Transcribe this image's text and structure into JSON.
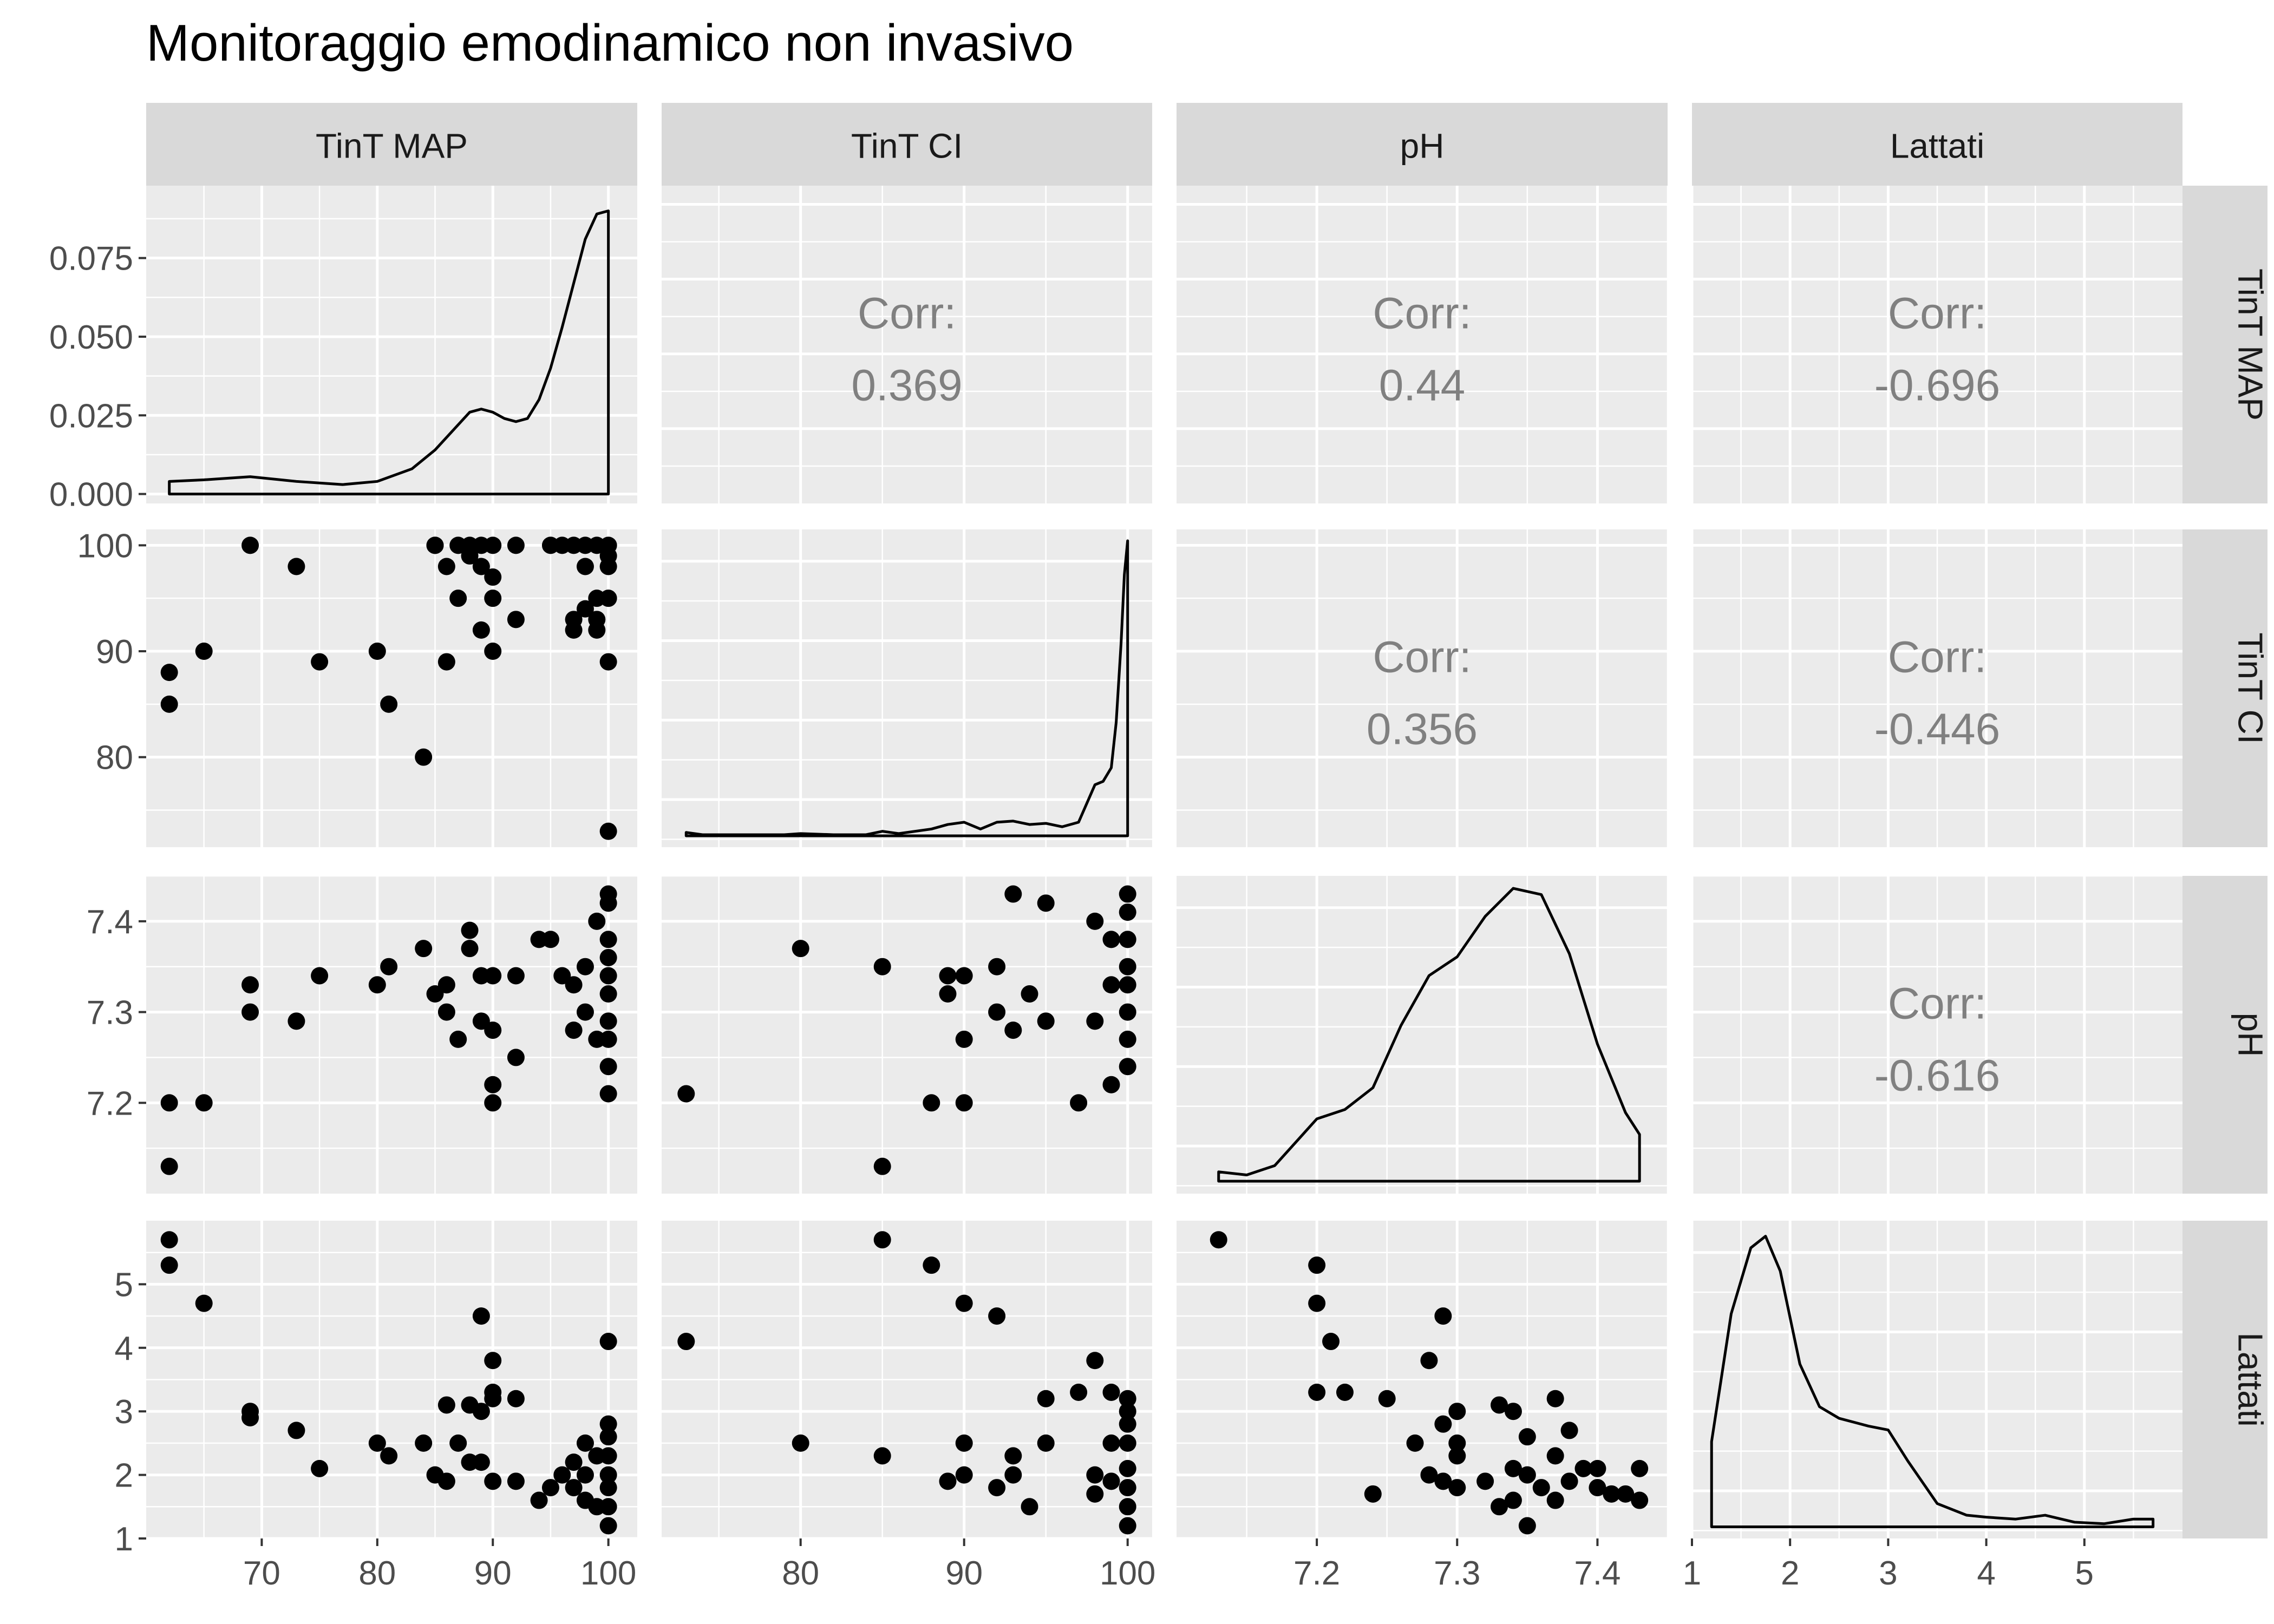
{
  "title": "Monitoraggio emodinamico non invasivo",
  "variables": [
    "TinT MAP",
    "TinT CI",
    "pH",
    "Lattati"
  ],
  "corr_label": "Corr:",
  "colors": {
    "panel_background": "#EBEBEB",
    "grid": "#FFFFFF",
    "strip_background": "#D9D9D9",
    "strip_text": "#1A1A1A",
    "corr_text": "#808080",
    "points": "#000000",
    "axis_text": "#4D4D4D",
    "title": "#000000"
  },
  "axes": {
    "TinT MAP": {
      "range": [
        60.0,
        102.5
      ],
      "ticks": [
        70,
        80,
        90,
        100
      ]
    },
    "TinT CI": {
      "range": [
        71.5,
        101.5
      ],
      "ticks": [
        80,
        90,
        100
      ]
    },
    "pH": {
      "range": [
        7.1,
        7.45
      ],
      "ticks": [
        7.2,
        7.3,
        7.4
      ]
    },
    "Lattati": {
      "range": [
        1.0,
        6.0
      ],
      "ticks": [
        1,
        2,
        3,
        4,
        5
      ]
    }
  },
  "chart_data": [
    {
      "type": "area",
      "row": "TinT MAP",
      "col": "TinT MAP",
      "ylim": [
        -0.003,
        0.098
      ],
      "y_ticks": [
        0.0,
        0.025,
        0.05,
        0.075
      ],
      "y_tick_labels": [
        "0.000",
        "0.025",
        "0.050",
        "0.075"
      ],
      "x": [
        62.0,
        65.0,
        69.0,
        73.0,
        77.0,
        80.0,
        83.0,
        85.0,
        87.0,
        88.0,
        89.0,
        90.0,
        91.0,
        92.0,
        93.0,
        94.0,
        95.0,
        96.0,
        97.0,
        98.0,
        99.0,
        100.0
      ],
      "y": [
        0.004,
        0.0045,
        0.0055,
        0.004,
        0.003,
        0.004,
        0.008,
        0.014,
        0.022,
        0.026,
        0.027,
        0.026,
        0.024,
        0.023,
        0.024,
        0.03,
        0.04,
        0.053,
        0.067,
        0.081,
        0.089,
        0.09
      ]
    },
    {
      "type": "table",
      "row": "TinT MAP",
      "col": "TinT CI",
      "corr": "0.369"
    },
    {
      "type": "table",
      "row": "TinT MAP",
      "col": "pH",
      "corr": "0.44"
    },
    {
      "type": "table",
      "row": "TinT MAP",
      "col": "Lattati",
      "corr": "-0.696"
    },
    {
      "type": "scatter",
      "row": "TinT CI",
      "col": "TinT MAP",
      "x": [
        62,
        62,
        65,
        69,
        73,
        75,
        80,
        81,
        84,
        85,
        85,
        86,
        86,
        87,
        87,
        88,
        88,
        89,
        89,
        89,
        90,
        90,
        90,
        90,
        92,
        92,
        95,
        96,
        97,
        97,
        97,
        98,
        98,
        98,
        99,
        99,
        99,
        99,
        100,
        100,
        100,
        100,
        100,
        100
      ],
      "y": [
        88,
        85,
        90,
        100,
        98,
        89,
        90,
        85,
        80,
        100,
        100,
        98,
        89,
        100,
        95,
        99,
        100,
        100,
        98,
        92,
        100,
        97,
        95,
        90,
        100,
        93,
        100,
        100,
        100,
        93,
        92,
        98,
        100,
        94,
        100,
        95,
        93,
        92,
        100,
        99,
        98,
        95,
        89,
        73
      ]
    },
    {
      "type": "area",
      "row": "TinT CI",
      "col": "TinT CI",
      "ylim": [
        -0.01,
        0.27
      ],
      "x": [
        73.0,
        74.0,
        76.0,
        79.0,
        80.0,
        82.0,
        84.0,
        85.0,
        86.0,
        88.0,
        89.0,
        90.0,
        91.0,
        92.0,
        93.0,
        94.0,
        95.0,
        96.0,
        97.0,
        98.0,
        98.5,
        99.0,
        99.3,
        99.6,
        99.8,
        100.0
      ],
      "y": [
        0.003,
        0.001,
        0.001,
        0.001,
        0.002,
        0.001,
        0.001,
        0.004,
        0.002,
        0.006,
        0.01,
        0.012,
        0.006,
        0.012,
        0.013,
        0.01,
        0.011,
        0.008,
        0.012,
        0.045,
        0.048,
        0.06,
        0.1,
        0.17,
        0.23,
        0.26
      ]
    },
    {
      "type": "table",
      "row": "TinT CI",
      "col": "pH",
      "corr": "0.356"
    },
    {
      "type": "table",
      "row": "TinT CI",
      "col": "Lattati",
      "corr": "-0.446"
    },
    {
      "type": "scatter",
      "row": "pH",
      "col": "TinT MAP",
      "x": [
        62,
        62,
        65,
        69,
        69,
        73,
        75,
        80,
        81,
        84,
        85,
        86,
        86,
        87,
        88,
        88,
        89,
        89,
        90,
        90,
        90,
        90,
        92,
        92,
        94,
        95,
        96,
        97,
        97,
        98,
        98,
        99,
        99,
        100,
        100,
        100,
        100,
        100,
        100,
        100,
        100,
        100,
        100
      ],
      "y": [
        7.2,
        7.13,
        7.2,
        7.33,
        7.3,
        7.29,
        7.34,
        7.33,
        7.35,
        7.37,
        7.32,
        7.33,
        7.3,
        7.27,
        7.39,
        7.37,
        7.34,
        7.29,
        7.34,
        7.28,
        7.22,
        7.2,
        7.34,
        7.25,
        7.38,
        7.38,
        7.34,
        7.33,
        7.28,
        7.35,
        7.3,
        7.4,
        7.27,
        7.43,
        7.42,
        7.38,
        7.36,
        7.34,
        7.32,
        7.29,
        7.27,
        7.24,
        7.21
      ]
    },
    {
      "type": "scatter",
      "row": "pH",
      "col": "TinT CI",
      "x": [
        73,
        80,
        85,
        85,
        88,
        89,
        89,
        90,
        90,
        90,
        92,
        92,
        93,
        93,
        94,
        95,
        95,
        97,
        98,
        98,
        99,
        99,
        99,
        100,
        100,
        100,
        100,
        100,
        100,
        100,
        100
      ],
      "y": [
        7.21,
        7.37,
        7.35,
        7.13,
        7.2,
        7.34,
        7.32,
        7.34,
        7.27,
        7.2,
        7.35,
        7.3,
        7.43,
        7.28,
        7.32,
        7.42,
        7.29,
        7.2,
        7.4,
        7.29,
        7.38,
        7.33,
        7.22,
        7.43,
        7.41,
        7.38,
        7.35,
        7.33,
        7.3,
        7.27,
        7.24
      ]
    },
    {
      "type": "area",
      "row": "pH",
      "col": "pH",
      "ylim": [
        -0.4,
        9.8
      ],
      "x": [
        7.13,
        7.15,
        7.17,
        7.19,
        7.2,
        7.22,
        7.24,
        7.26,
        7.28,
        7.3,
        7.32,
        7.34,
        7.36,
        7.38,
        7.4,
        7.42,
        7.43
      ],
      "y": [
        0.3,
        0.2,
        0.5,
        1.5,
        2.0,
        2.3,
        3.0,
        5.0,
        6.6,
        7.2,
        8.5,
        9.4,
        9.2,
        7.3,
        4.4,
        2.2,
        1.5
      ]
    },
    {
      "type": "table",
      "row": "pH",
      "col": "Lattati",
      "corr": "-0.616"
    },
    {
      "type": "scatter",
      "row": "Lattati",
      "col": "TinT MAP",
      "x": [
        62,
        62,
        65,
        69,
        69,
        73,
        75,
        80,
        81,
        84,
        85,
        86,
        86,
        87,
        88,
        88,
        89,
        89,
        89,
        90,
        90,
        90,
        90,
        92,
        92,
        94,
        95,
        96,
        97,
        97,
        98,
        98,
        98,
        99,
        99,
        100,
        100,
        100,
        100,
        100,
        100,
        100,
        100
      ],
      "y": [
        5.7,
        5.3,
        4.7,
        3.0,
        2.9,
        2.7,
        2.1,
        2.5,
        2.3,
        2.5,
        2.0,
        3.1,
        1.9,
        2.5,
        3.1,
        2.2,
        4.5,
        3.0,
        2.2,
        3.8,
        3.3,
        3.2,
        1.9,
        3.2,
        1.9,
        1.6,
        1.8,
        2.0,
        2.2,
        1.8,
        2.5,
        2.0,
        1.6,
        2.3,
        1.5,
        4.1,
        2.8,
        2.6,
        2.3,
        2.0,
        1.8,
        1.5,
        1.2
      ]
    },
    {
      "type": "scatter",
      "row": "Lattati",
      "col": "TinT CI",
      "x": [
        73,
        80,
        85,
        85,
        88,
        89,
        90,
        90,
        90,
        92,
        92,
        93,
        93,
        94,
        95,
        95,
        97,
        98,
        98,
        98,
        99,
        99,
        99,
        100,
        100,
        100,
        100,
        100,
        100,
        100,
        100
      ],
      "y": [
        4.1,
        2.5,
        5.7,
        2.3,
        5.3,
        1.9,
        4.7,
        2.5,
        2.0,
        4.5,
        1.8,
        2.3,
        2.0,
        1.5,
        3.2,
        2.5,
        3.3,
        3.8,
        2.0,
        1.7,
        3.3,
        2.5,
        1.9,
        3.2,
        3.0,
        2.8,
        2.5,
        2.1,
        1.8,
        1.5,
        1.2
      ]
    },
    {
      "type": "scatter",
      "row": "Lattati",
      "col": "pH",
      "x": [
        7.13,
        7.2,
        7.2,
        7.21,
        7.2,
        7.22,
        7.24,
        7.25,
        7.27,
        7.28,
        7.28,
        7.29,
        7.29,
        7.29,
        7.3,
        7.3,
        7.3,
        7.3,
        7.32,
        7.33,
        7.33,
        7.34,
        7.34,
        7.34,
        7.35,
        7.35,
        7.35,
        7.36,
        7.37,
        7.37,
        7.37,
        7.38,
        7.38,
        7.39,
        7.4,
        7.4,
        7.41,
        7.42,
        7.43,
        7.43
      ],
      "y": [
        5.7,
        5.3,
        4.7,
        4.1,
        3.3,
        3.3,
        1.7,
        3.2,
        2.5,
        3.8,
        2.0,
        4.5,
        2.8,
        1.9,
        3.0,
        2.3,
        1.8,
        2.5,
        1.9,
        3.1,
        1.5,
        3.0,
        2.1,
        1.6,
        2.6,
        2.0,
        1.2,
        1.8,
        3.2,
        2.3,
        1.6,
        2.7,
        1.9,
        2.1,
        1.8,
        2.1,
        1.7,
        1.7,
        2.1,
        1.6
      ]
    },
    {
      "type": "area",
      "row": "Lattati",
      "col": "Lattati",
      "ylim": [
        -0.03,
        0.79
      ],
      "x": [
        1.2,
        1.4,
        1.6,
        1.75,
        1.9,
        2.1,
        2.3,
        2.5,
        2.8,
        3.0,
        3.2,
        3.5,
        3.8,
        4.0,
        4.3,
        4.6,
        4.9,
        5.2,
        5.5,
        5.7
      ],
      "y": [
        0.22,
        0.55,
        0.72,
        0.75,
        0.66,
        0.42,
        0.31,
        0.28,
        0.26,
        0.25,
        0.17,
        0.06,
        0.03,
        0.025,
        0.02,
        0.03,
        0.012,
        0.008,
        0.02,
        0.02
      ]
    }
  ]
}
